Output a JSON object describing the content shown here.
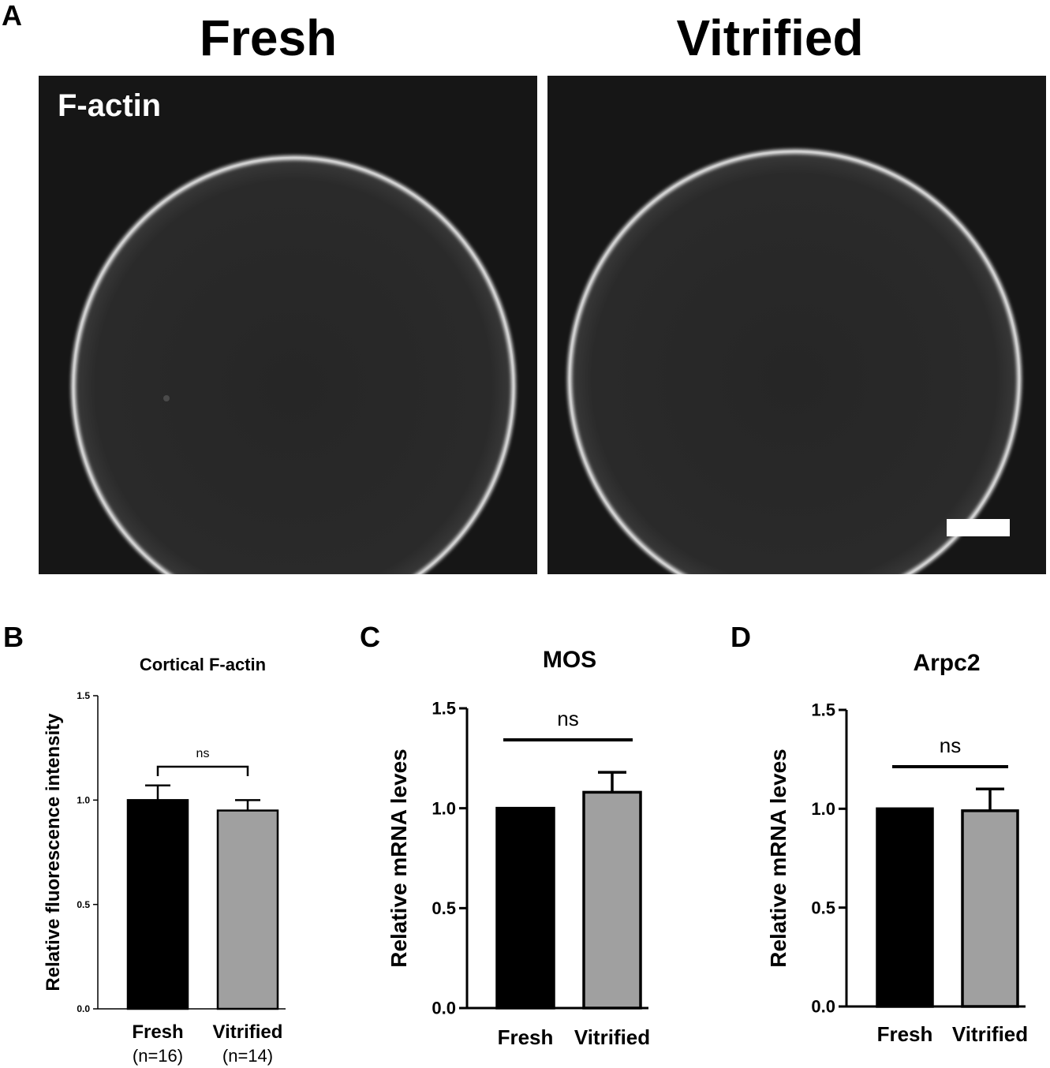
{
  "panel_a": {
    "letter": "A",
    "columns": [
      {
        "title": "Fresh"
      },
      {
        "title": "Vitrified"
      }
    ],
    "stain_label": "F-actin",
    "colors": {
      "background": "#161616",
      "cortex": "#dcdcdc"
    }
  },
  "panels": {
    "b": "B",
    "c": "C",
    "d": "D"
  },
  "chart_data": [
    {
      "type": "bar",
      "title": "Cortical F-actin",
      "ylabel": "Relative fluorescence intensity",
      "categories": [
        "Fresh",
        "Vitrified"
      ],
      "sample_sizes": [
        "(n=16)",
        "(n=14)"
      ],
      "values": [
        1.0,
        0.95
      ],
      "errors": [
        0.07,
        0.05
      ],
      "colors": [
        "#000000",
        "#a0a0a0"
      ],
      "ylim": [
        0,
        1.5
      ],
      "yticks": [
        "0.0",
        "0.5",
        "1.0",
        "1.5"
      ],
      "significance": "ns"
    },
    {
      "type": "bar",
      "title": "MOS",
      "ylabel": "Relative mRNA leves",
      "categories": [
        "Fresh",
        "Vitrified"
      ],
      "values": [
        1.0,
        1.08
      ],
      "errors": [
        0.0,
        0.1
      ],
      "colors": [
        "#000000",
        "#a0a0a0"
      ],
      "ylim": [
        0,
        1.5
      ],
      "yticks": [
        "0.0",
        "0.5",
        "1.0",
        "1.5"
      ],
      "significance": "ns"
    },
    {
      "type": "bar",
      "title": "Arpc2",
      "ylabel": "Relative mRNA leves",
      "categories": [
        "Fresh",
        "Vitrified"
      ],
      "values": [
        1.0,
        0.99
      ],
      "errors": [
        0.0,
        0.11
      ],
      "colors": [
        "#000000",
        "#a0a0a0"
      ],
      "ylim": [
        0,
        1.5
      ],
      "yticks": [
        "0.0",
        "0.5",
        "1.0",
        "1.5"
      ],
      "significance": "ns"
    }
  ]
}
